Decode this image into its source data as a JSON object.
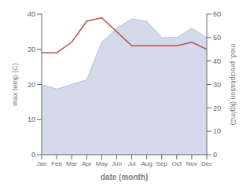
{
  "chart_data": {
    "type": "line",
    "categories": [
      "Jan",
      "Feb",
      "Mar",
      "Apr",
      "May",
      "Jun",
      "Jul",
      "Aug",
      "Sep",
      "Oct",
      "Nov",
      "Dec"
    ],
    "xlabel": "date (month)",
    "ylabel": "max temp (C)",
    "y2label": "med. precipitation (kg/m2)",
    "series": [
      {
        "type": "area",
        "axis": "y2",
        "color": "#b8c0e0",
        "values": [
          30,
          28,
          30,
          32,
          48,
          54,
          58,
          57,
          50,
          50,
          54,
          50
        ]
      },
      {
        "type": "line",
        "color": "#c0504d",
        "values": [
          29,
          29,
          32,
          38,
          39,
          35,
          31,
          31,
          31,
          31,
          32,
          30
        ]
      }
    ],
    "ylim": [
      0,
      40
    ],
    "yticks": [
      0,
      10,
      20,
      30,
      40
    ],
    "y2lim": [
      0,
      60
    ],
    "y2ticks": [
      0,
      10,
      20,
      30,
      40,
      50,
      60
    ],
    "grid": false
  }
}
